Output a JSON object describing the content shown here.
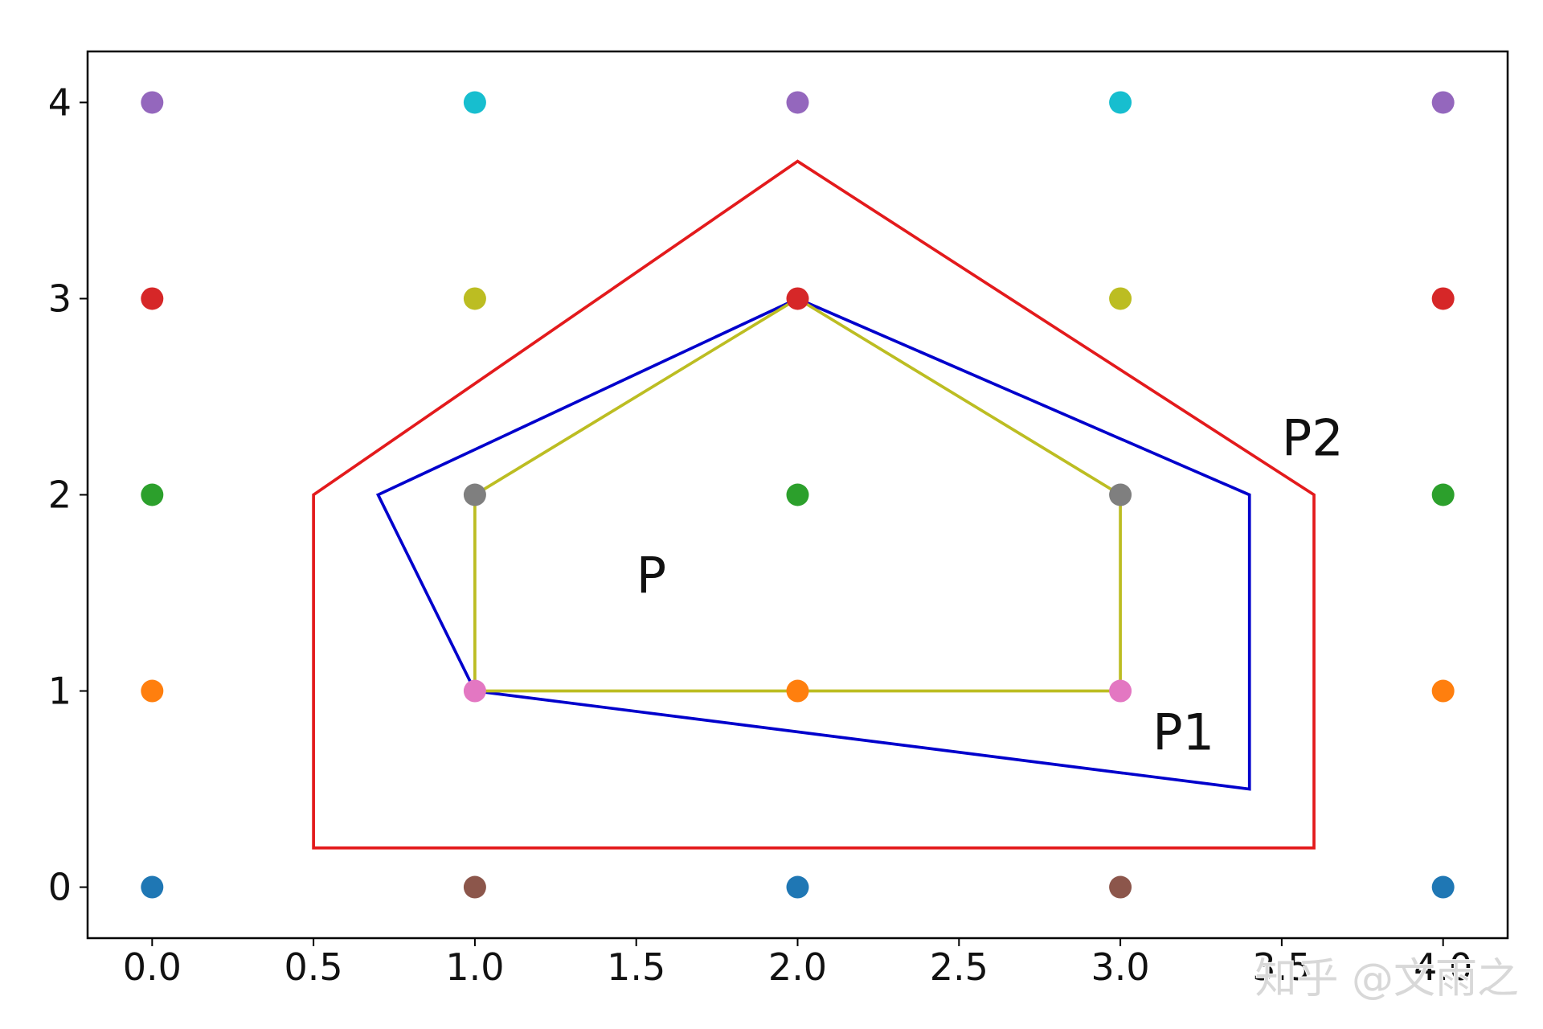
{
  "chart_data": {
    "type": "scatter",
    "xlim": [
      -0.2,
      4.2
    ],
    "ylim": [
      -0.26,
      4.26
    ],
    "xticks": [
      {
        "value": 0,
        "label": "0.0"
      },
      {
        "value": 0.5,
        "label": "0.5"
      },
      {
        "value": 1,
        "label": "1.0"
      },
      {
        "value": 1.5,
        "label": "1.5"
      },
      {
        "value": 2,
        "label": "2.0"
      },
      {
        "value": 2.5,
        "label": "2.5"
      },
      {
        "value": 3,
        "label": "3.0"
      },
      {
        "value": 3.5,
        "label": "3.5"
      },
      {
        "value": 4,
        "label": "4.0"
      }
    ],
    "yticks": [
      0,
      1,
      2,
      3,
      4
    ],
    "points": {
      "x": [
        0,
        0,
        0,
        0,
        0,
        1,
        1,
        1,
        1,
        1,
        2,
        2,
        2,
        2,
        2,
        3,
        3,
        3,
        3,
        3,
        4,
        4,
        4,
        4,
        4
      ],
      "y": [
        0,
        1,
        2,
        3,
        4,
        0,
        1,
        2,
        3,
        4,
        0,
        1,
        2,
        3,
        4,
        0,
        1,
        2,
        3,
        4,
        0,
        1,
        2,
        3,
        4
      ],
      "colors": [
        "#1f77b4",
        "#ff7f0e",
        "#2ca02c",
        "#d62728",
        "#9467bd",
        "#8c564b",
        "#e377c2",
        "#7f7f7f",
        "#bcbd22",
        "#17becf",
        "#1f77b4",
        "#ff7f0e",
        "#2ca02c",
        "#d62728",
        "#9467bd",
        "#8c564b",
        "#e377c2",
        "#7f7f7f",
        "#bcbd22",
        "#17becf",
        "#1f77b4",
        "#ff7f0e",
        "#2ca02c",
        "#d62728",
        "#9467bd"
      ]
    },
    "polygons": [
      {
        "label": "P2",
        "color": "#e31a1c",
        "x": [
          0.5,
          2,
          3.6,
          3.6,
          0.5
        ],
        "y": [
          2,
          3.7,
          2,
          0.2,
          0.2
        ],
        "label_x": 3.5,
        "label_y": 2.2
      },
      {
        "label": "P1",
        "color": "#0000cc",
        "x": [
          0.7,
          2,
          3.4,
          3.4,
          1
        ],
        "y": [
          2,
          3,
          2,
          0.5,
          1
        ],
        "label_x": 3.1,
        "label_y": 0.7
      },
      {
        "label": "P",
        "color": "#bcbd22",
        "x": [
          1,
          2,
          3,
          3,
          1
        ],
        "y": [
          2,
          3,
          2,
          1,
          1
        ],
        "label_x": 1.5,
        "label_y": 1.5
      }
    ],
    "watermark": "知乎 @文雨之"
  }
}
